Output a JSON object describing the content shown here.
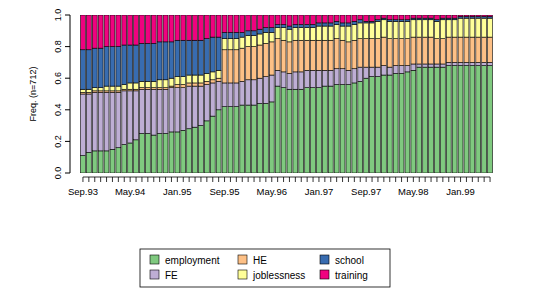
{
  "chart_data": {
    "type": "bar",
    "stacked": true,
    "legend": "bottom",
    "y_label": "Freq. (n=712)",
    "ylim": [
      0,
      1
    ],
    "yticks": [
      {
        "value": 0,
        "label": "0.0"
      },
      0.2,
      0.4,
      0.6,
      0.8,
      {
        "value": 1,
        "label": "1.0"
      }
    ],
    "categories": [
      "Sep.93",
      null,
      null,
      null,
      null,
      null,
      null,
      null,
      "May.94",
      null,
      null,
      null,
      null,
      null,
      null,
      null,
      "Jan.95",
      null,
      null,
      null,
      null,
      null,
      null,
      null,
      "Sep.95",
      null,
      null,
      null,
      null,
      null,
      null,
      null,
      "May.96",
      null,
      null,
      null,
      null,
      null,
      null,
      null,
      "Jan.97",
      null,
      null,
      null,
      null,
      null,
      null,
      null,
      "Sep.97",
      null,
      null,
      null,
      null,
      null,
      null,
      null,
      "May.98",
      null,
      null,
      null,
      null,
      null,
      null,
      null,
      "Jan.99",
      null,
      null,
      null,
      null,
      null
    ],
    "series": [
      {
        "name": "employment",
        "color": "#7FC97F",
        "values": [
          0.11,
          0.13,
          0.14,
          0.14,
          0.14,
          0.15,
          0.16,
          0.18,
          0.19,
          0.21,
          0.25,
          0.25,
          0.24,
          0.25,
          0.25,
          0.26,
          0.26,
          0.27,
          0.28,
          0.29,
          0.3,
          0.33,
          0.36,
          0.4,
          0.42,
          0.42,
          0.42,
          0.43,
          0.43,
          0.43,
          0.44,
          0.44,
          0.45,
          0.55,
          0.54,
          0.53,
          0.53,
          0.53,
          0.54,
          0.54,
          0.54,
          0.55,
          0.55,
          0.56,
          0.56,
          0.56,
          0.57,
          0.58,
          0.6,
          0.61,
          0.61,
          0.62,
          0.62,
          0.63,
          0.63,
          0.64,
          0.65,
          0.67,
          0.67,
          0.67,
          0.67,
          0.67,
          0.68,
          0.68,
          0.68,
          0.68,
          0.68,
          0.68,
          0.68,
          0.68
        ]
      },
      {
        "name": "FE",
        "color": "#BEAED4",
        "values": [
          0.39,
          0.37,
          0.37,
          0.37,
          0.37,
          0.36,
          0.35,
          0.34,
          0.33,
          0.31,
          0.28,
          0.28,
          0.29,
          0.28,
          0.28,
          0.28,
          0.28,
          0.27,
          0.27,
          0.26,
          0.25,
          0.23,
          0.21,
          0.18,
          0.15,
          0.15,
          0.15,
          0.15,
          0.16,
          0.16,
          0.16,
          0.17,
          0.17,
          0.1,
          0.1,
          0.1,
          0.11,
          0.11,
          0.11,
          0.11,
          0.11,
          0.1,
          0.1,
          0.1,
          0.1,
          0.09,
          0.09,
          0.09,
          0.07,
          0.06,
          0.06,
          0.06,
          0.05,
          0.05,
          0.05,
          0.04,
          0.04,
          0.02,
          0.02,
          0.02,
          0.02,
          0.02,
          0.02,
          0.02,
          0.02,
          0.02,
          0.02,
          0.02,
          0.02,
          0.02
        ]
      },
      {
        "name": "HE",
        "color": "#FDC086",
        "values": [
          0.01,
          0.01,
          0.01,
          0.01,
          0.01,
          0.01,
          0.01,
          0.01,
          0.01,
          0.01,
          0.01,
          0.01,
          0.01,
          0.01,
          0.01,
          0.01,
          0.02,
          0.02,
          0.02,
          0.02,
          0.02,
          0.02,
          0.02,
          0.02,
          0.21,
          0.21,
          0.21,
          0.21,
          0.21,
          0.21,
          0.21,
          0.21,
          0.21,
          0.2,
          0.2,
          0.2,
          0.2,
          0.2,
          0.19,
          0.19,
          0.19,
          0.19,
          0.19,
          0.19,
          0.18,
          0.18,
          0.18,
          0.18,
          0.18,
          0.18,
          0.18,
          0.18,
          0.18,
          0.17,
          0.17,
          0.17,
          0.17,
          0.17,
          0.17,
          0.17,
          0.16,
          0.16,
          0.16,
          0.16,
          0.16,
          0.16,
          0.16,
          0.16,
          0.16,
          0.16
        ]
      },
      {
        "name": "joblessness",
        "color": "#FFFF99",
        "values": [
          0.02,
          0.02,
          0.02,
          0.02,
          0.03,
          0.03,
          0.03,
          0.03,
          0.04,
          0.04,
          0.04,
          0.04,
          0.04,
          0.05,
          0.05,
          0.05,
          0.05,
          0.05,
          0.05,
          0.05,
          0.05,
          0.05,
          0.05,
          0.05,
          0.07,
          0.07,
          0.07,
          0.07,
          0.07,
          0.07,
          0.07,
          0.07,
          0.06,
          0.07,
          0.08,
          0.08,
          0.08,
          0.08,
          0.08,
          0.08,
          0.09,
          0.09,
          0.09,
          0.09,
          0.09,
          0.1,
          0.1,
          0.1,
          0.1,
          0.1,
          0.11,
          0.11,
          0.11,
          0.11,
          0.11,
          0.11,
          0.11,
          0.11,
          0.11,
          0.11,
          0.11,
          0.12,
          0.11,
          0.11,
          0.12,
          0.12,
          0.12,
          0.12,
          0.12,
          0.12
        ]
      },
      {
        "name": "school",
        "color": "#386CB0",
        "values": [
          0.25,
          0.25,
          0.25,
          0.25,
          0.25,
          0.25,
          0.25,
          0.25,
          0.24,
          0.24,
          0.24,
          0.24,
          0.24,
          0.24,
          0.24,
          0.23,
          0.23,
          0.23,
          0.22,
          0.22,
          0.22,
          0.22,
          0.22,
          0.21,
          0.04,
          0.04,
          0.04,
          0.03,
          0.03,
          0.03,
          0.03,
          0.03,
          0.03,
          0.02,
          0.02,
          0.02,
          0.02,
          0.02,
          0.02,
          0.02,
          0.02,
          0.02,
          0.02,
          0.02,
          0.02,
          0.02,
          0.02,
          0.02,
          0.01,
          0.01,
          0.01,
          0.01,
          0.01,
          0.01,
          0.01,
          0.01,
          0.01,
          0.01,
          0.01,
          0.01,
          0.01,
          0.01,
          0.01,
          0.01,
          0.01,
          0.01,
          0.01,
          0.01,
          0.01,
          0.01
        ]
      },
      {
        "name": "training",
        "color": "#F0027F",
        "values": [
          0.22,
          0.22,
          0.21,
          0.21,
          0.2,
          0.2,
          0.2,
          0.19,
          0.19,
          0.19,
          0.18,
          0.18,
          0.18,
          0.17,
          0.17,
          0.17,
          0.16,
          0.16,
          0.16,
          0.16,
          0.16,
          0.15,
          0.14,
          0.14,
          0.11,
          0.11,
          0.11,
          0.11,
          0.1,
          0.1,
          0.09,
          0.08,
          0.08,
          0.06,
          0.06,
          0.07,
          0.06,
          0.06,
          0.06,
          0.06,
          0.05,
          0.05,
          0.05,
          0.04,
          0.05,
          0.05,
          0.04,
          0.03,
          0.04,
          0.04,
          0.03,
          0.02,
          0.03,
          0.03,
          0.03,
          0.03,
          0.02,
          0.02,
          0.02,
          0.02,
          0.03,
          0.02,
          0.02,
          0.02,
          0.01,
          0.01,
          0.01,
          0.01,
          0.01,
          0.01
        ]
      }
    ]
  }
}
